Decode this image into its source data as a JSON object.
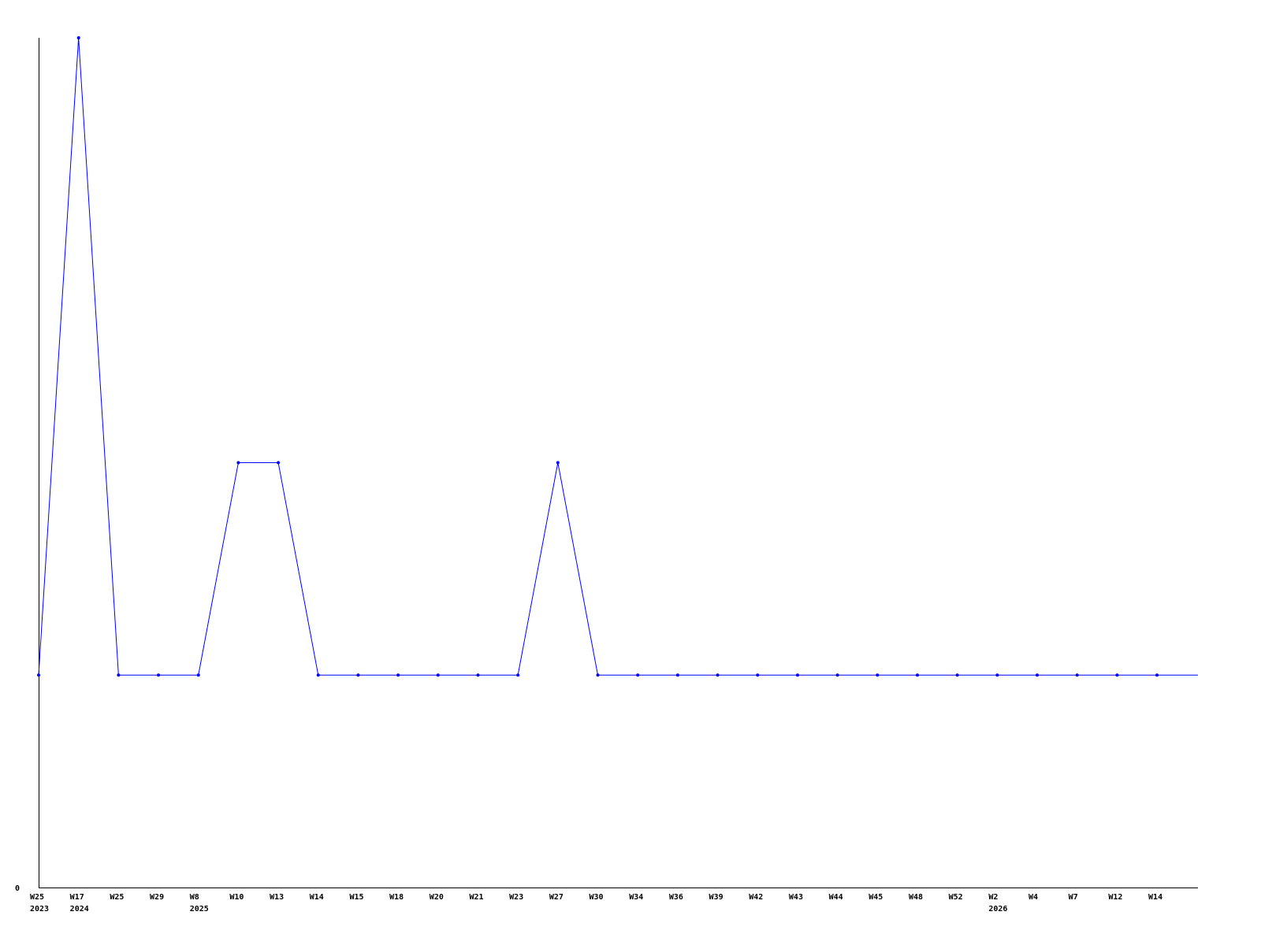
{
  "chart_data": {
    "type": "line",
    "title": "",
    "xlabel": "",
    "ylabel": "",
    "grid": false,
    "legend": "none",
    "y_tick_labels": [
      "0"
    ],
    "ylim": [
      0,
      4
    ],
    "line_color": "#0000ff",
    "x": [
      {
        "week": "W25",
        "year": "2023"
      },
      {
        "week": "W17",
        "year": "2024"
      },
      {
        "week": "W25",
        "year": ""
      },
      {
        "week": "W29",
        "year": ""
      },
      {
        "week": "W8",
        "year": "2025"
      },
      {
        "week": "W10",
        "year": ""
      },
      {
        "week": "W13",
        "year": ""
      },
      {
        "week": "W14",
        "year": ""
      },
      {
        "week": "W15",
        "year": ""
      },
      {
        "week": "W18",
        "year": ""
      },
      {
        "week": "W20",
        "year": ""
      },
      {
        "week": "W21",
        "year": ""
      },
      {
        "week": "W23",
        "year": ""
      },
      {
        "week": "W27",
        "year": ""
      },
      {
        "week": "W30",
        "year": ""
      },
      {
        "week": "W34",
        "year": ""
      },
      {
        "week": "W36",
        "year": ""
      },
      {
        "week": "W39",
        "year": ""
      },
      {
        "week": "W42",
        "year": ""
      },
      {
        "week": "W43",
        "year": ""
      },
      {
        "week": "W44",
        "year": ""
      },
      {
        "week": "W45",
        "year": ""
      },
      {
        "week": "W48",
        "year": ""
      },
      {
        "week": "W52",
        "year": ""
      },
      {
        "week": "W2",
        "year": "2026"
      },
      {
        "week": "W4",
        "year": ""
      },
      {
        "week": "W7",
        "year": ""
      },
      {
        "week": "W12",
        "year": ""
      },
      {
        "week": "W14",
        "year": ""
      }
    ],
    "values": [
      1,
      4,
      1,
      1,
      1,
      2,
      2,
      1,
      1,
      1,
      1,
      1,
      1,
      2,
      1,
      1,
      1,
      1,
      1,
      1,
      1,
      1,
      1,
      1,
      1,
      1,
      1,
      1,
      1
    ]
  }
}
